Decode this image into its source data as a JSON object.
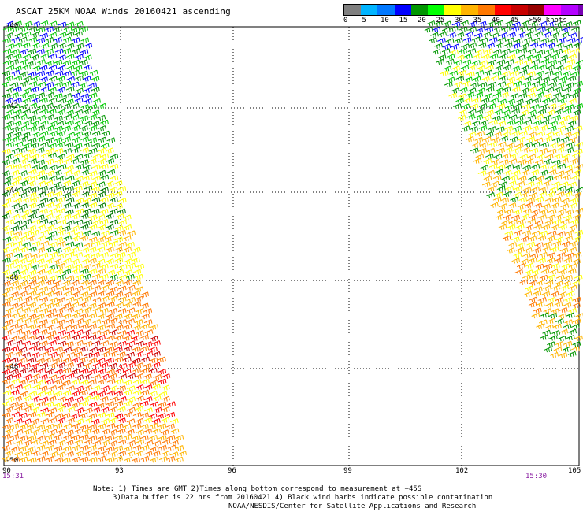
{
  "title": "ASCAT 25KM NOAA Winds 20160421 ascending",
  "legend": {
    "colors": [
      "#808080",
      "#00b4ff",
      "#0078ff",
      "#0000ff",
      "#009600",
      "#00ff00",
      "#ffff00",
      "#ffb400",
      "#ff7800",
      "#ff0000",
      "#c80000",
      "#960000",
      "#ff00ff",
      "#b400ff",
      "#7800b4"
    ],
    "tick_labels": [
      "0",
      "5",
      "10",
      "15",
      "20",
      "25",
      "30",
      "35",
      "40",
      "45",
      ">50 knots"
    ]
  },
  "map": {
    "lon_labels": [
      "90",
      "93",
      "96",
      "99",
      "102",
      "105"
    ],
    "lat_labels": [
      "-40",
      "-42",
      "-44",
      "-46",
      "-48",
      "-50"
    ],
    "time_left": "15:31",
    "time_right": "15:30"
  },
  "notes": [
    "Note: 1) Times are GMT 2)Times along bottom correspond to measurement at −45S",
    "3)Data buffer is 22 hrs from 20160421 4) Black wind barbs indicate possible contamination",
    "NOAA/NESDIS/Center for Satellite Applications and Research"
  ]
}
